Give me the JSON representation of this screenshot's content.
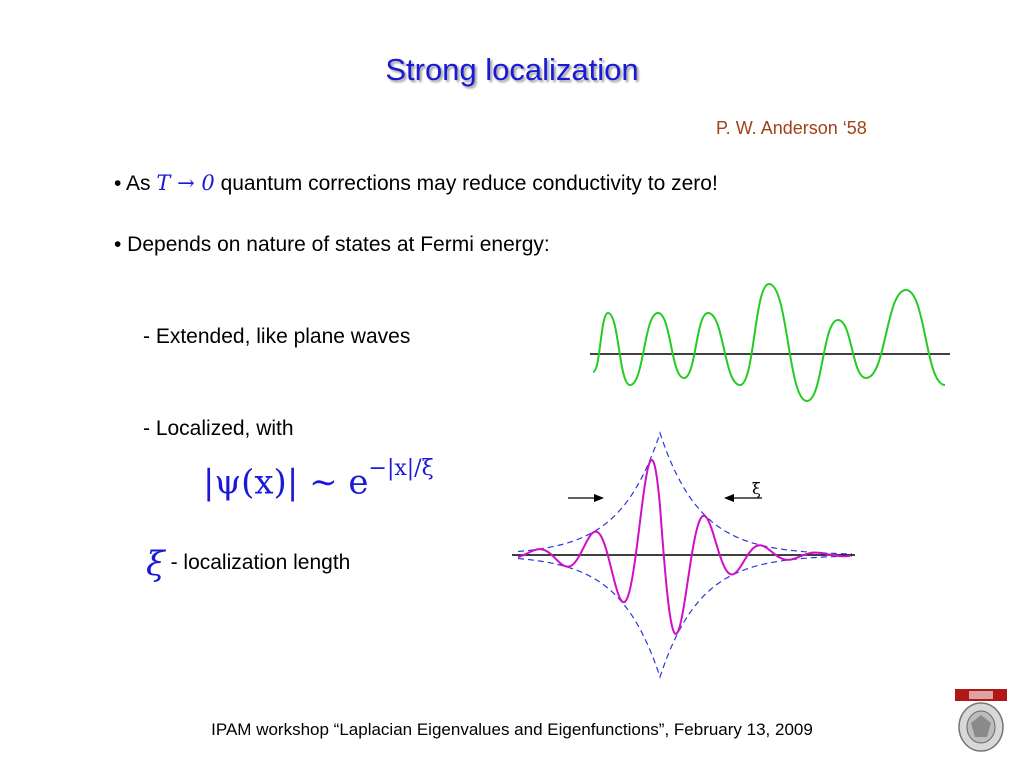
{
  "slide": {
    "title": "Strong localization",
    "attribution": "P. W. Anderson  ‘58",
    "bullet1": {
      "prefix": "• As",
      "math": "T → 0",
      "suffix": "quantum corrections may reduce conductivity to zero!"
    },
    "bullet2": "• Depends on nature of states at Fermi energy:",
    "sub1": "- Extended, like plane waves",
    "sub2": "- Localized, with",
    "formula": {
      "lhs": "|ψ(x)| ∼ e",
      "exponent": "−|x|/ξ"
    },
    "xi_definition": {
      "symbol": "ξ",
      "text": "- localization length"
    },
    "footer": "IPAM workshop “Laplacian Eigenvalues and Eigenfunctions”, February 13, 2009"
  },
  "figures": {
    "extended_wave": {
      "color": "#22cc22",
      "axis_color": "#000000"
    },
    "localized_wave": {
      "color": "#d010c8",
      "envelope_color": "#2a3ad8",
      "label": "ξ"
    }
  },
  "colors": {
    "title": "#1a1ad6",
    "attribution": "#a0421a",
    "math": "#1a1ad6"
  },
  "logo": {
    "name": "university-seal"
  }
}
